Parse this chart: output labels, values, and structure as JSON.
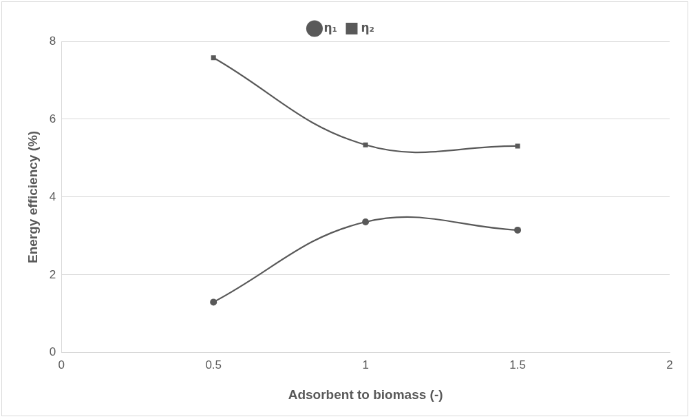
{
  "chart_data": {
    "type": "line",
    "xlabel": "Adsorbent to biomass (-)",
    "ylabel": "Energy efficiency (%)",
    "x": [
      0.5,
      1,
      1.5
    ],
    "series": [
      {
        "name": "η₁",
        "color": "#595959",
        "marker": "circle",
        "values": [
          1.3,
          3.36,
          3.15
        ]
      },
      {
        "name": "η₂",
        "color": "#595959",
        "marker": "square",
        "values": [
          7.58,
          5.34,
          5.31
        ]
      }
    ],
    "xlim": [
      0,
      2
    ],
    "xticks": [
      0,
      0.5,
      1,
      1.5,
      2
    ],
    "ylim": [
      0,
      8
    ],
    "yticks": [
      0,
      2,
      4,
      6,
      8
    ],
    "grid": "y",
    "legend": "top",
    "line_style": "solid"
  }
}
